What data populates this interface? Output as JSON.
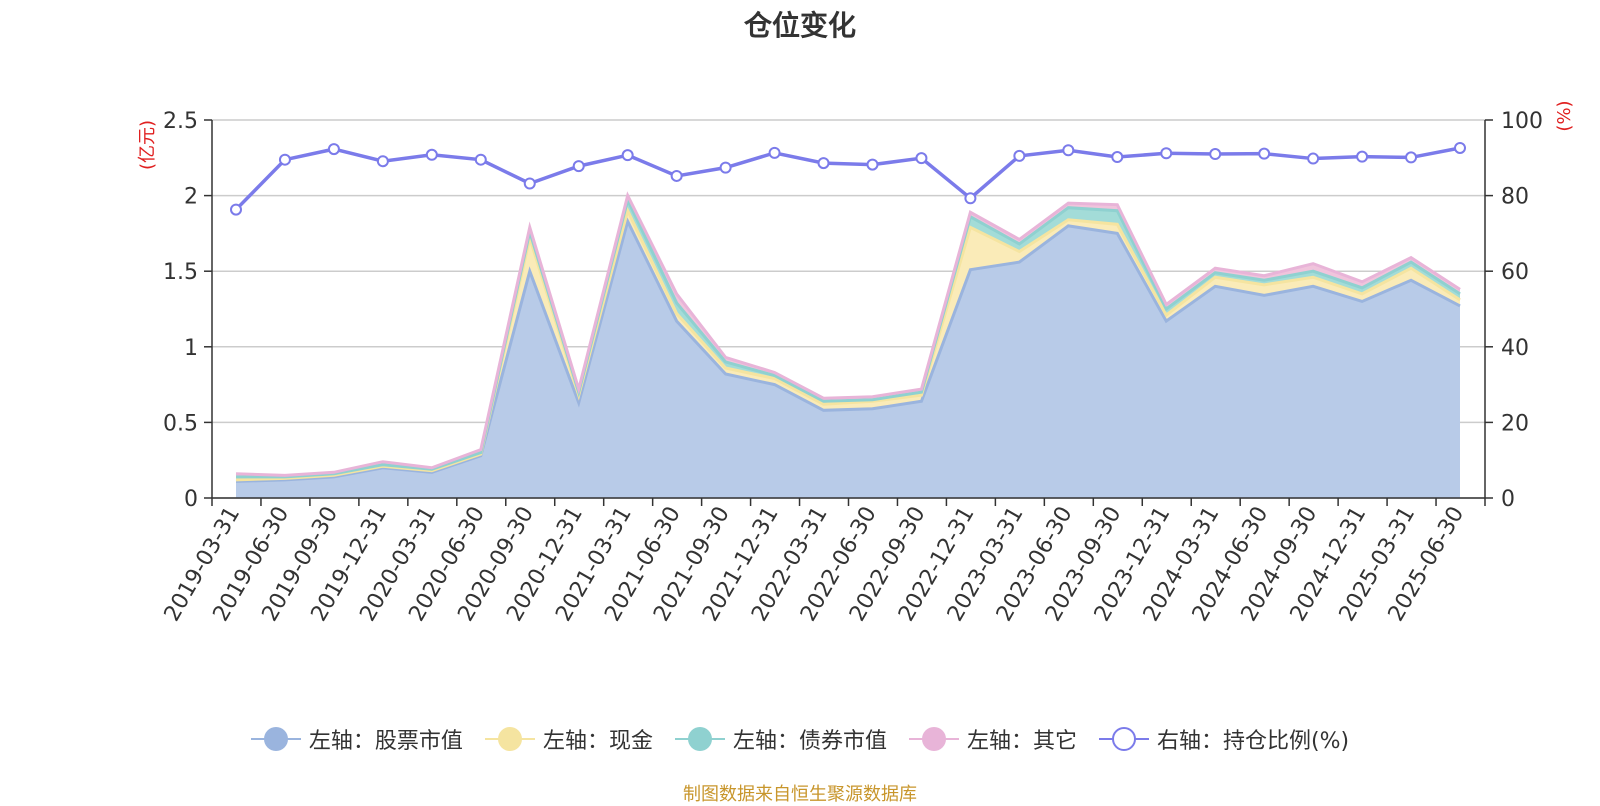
{
  "chart_data": {
    "type": "area",
    "title": "仓位变化",
    "left_axis_unit": "(亿元)",
    "right_axis_unit": "(%)",
    "x": [
      "2019-03-31",
      "2019-06-30",
      "2019-09-30",
      "2019-12-31",
      "2020-03-31",
      "2020-06-30",
      "2020-09-30",
      "2020-12-31",
      "2021-03-31",
      "2021-06-30",
      "2021-09-30",
      "2021-12-31",
      "2022-03-31",
      "2022-06-30",
      "2022-09-30",
      "2022-12-31",
      "2023-03-31",
      "2023-06-30",
      "2023-09-30",
      "2023-12-31",
      "2024-03-31",
      "2024-06-30",
      "2024-09-30",
      "2024-12-31",
      "2025-03-31",
      "2025-06-30"
    ],
    "ylim_left": [
      0,
      2.5
    ],
    "yticks_left": [
      "0",
      "0.5",
      "1",
      "1.5",
      "2",
      "2.5"
    ],
    "ylim_right": [
      0,
      100
    ],
    "yticks_right": [
      "0",
      "20",
      "40",
      "60",
      "80",
      "100"
    ],
    "grid": true,
    "legend_position": "bottom",
    "series": [
      {
        "name": "左轴：股票市值",
        "axis": "left",
        "stacked": true,
        "color": "#9ab4de",
        "fill": "#b8cbe8",
        "values": [
          0.11,
          0.12,
          0.14,
          0.2,
          0.17,
          0.28,
          1.5,
          0.63,
          1.83,
          1.17,
          0.82,
          0.75,
          0.58,
          0.59,
          0.64,
          1.51,
          1.56,
          1.8,
          1.75,
          1.17,
          1.4,
          1.34,
          1.4,
          1.3,
          1.44,
          1.27
        ]
      },
      {
        "name": "左轴：现金",
        "axis": "left",
        "stacked": true,
        "color": "#f5e4a0",
        "fill": "#faebb8",
        "values": [
          0.01,
          0.01,
          0.01,
          0.01,
          0.01,
          0.01,
          0.22,
          0.05,
          0.07,
          0.05,
          0.04,
          0.04,
          0.04,
          0.05,
          0.04,
          0.28,
          0.07,
          0.04,
          0.06,
          0.04,
          0.06,
          0.07,
          0.06,
          0.05,
          0.08,
          0.04
        ]
      },
      {
        "name": "左轴：债券市值",
        "axis": "left",
        "stacked": true,
        "color": "#8fd1d0",
        "fill": "#a3dcd8",
        "values": [
          0.02,
          0.01,
          0.01,
          0.01,
          0.01,
          0.01,
          0.04,
          0.02,
          0.07,
          0.07,
          0.04,
          0.02,
          0.02,
          0.01,
          0.02,
          0.07,
          0.05,
          0.08,
          0.09,
          0.04,
          0.03,
          0.03,
          0.04,
          0.04,
          0.04,
          0.04
        ]
      },
      {
        "name": "左轴：其它",
        "axis": "left",
        "stacked": true,
        "color": "#e8b4d8",
        "fill": "#f0c4dc",
        "values": [
          0.02,
          0.01,
          0.01,
          0.02,
          0.01,
          0.02,
          0.03,
          0.02,
          0.03,
          0.06,
          0.03,
          0.02,
          0.02,
          0.02,
          0.02,
          0.03,
          0.03,
          0.03,
          0.04,
          0.03,
          0.03,
          0.03,
          0.05,
          0.04,
          0.03,
          0.03
        ]
      },
      {
        "name": "右轴：持仓比例(%)",
        "axis": "right",
        "type": "line",
        "color": "#7b7bea",
        "values": [
          76.3,
          89.5,
          92.3,
          89.1,
          90.8,
          89.5,
          83.2,
          87.8,
          90.7,
          85.2,
          87.4,
          91.3,
          88.6,
          88.2,
          89.9,
          79.3,
          90.5,
          92.0,
          90.2,
          91.2,
          91.0,
          91.1,
          89.8,
          90.3,
          90.1,
          92.6
        ]
      }
    ]
  },
  "source_note": "制图数据来自恒生聚源数据库"
}
